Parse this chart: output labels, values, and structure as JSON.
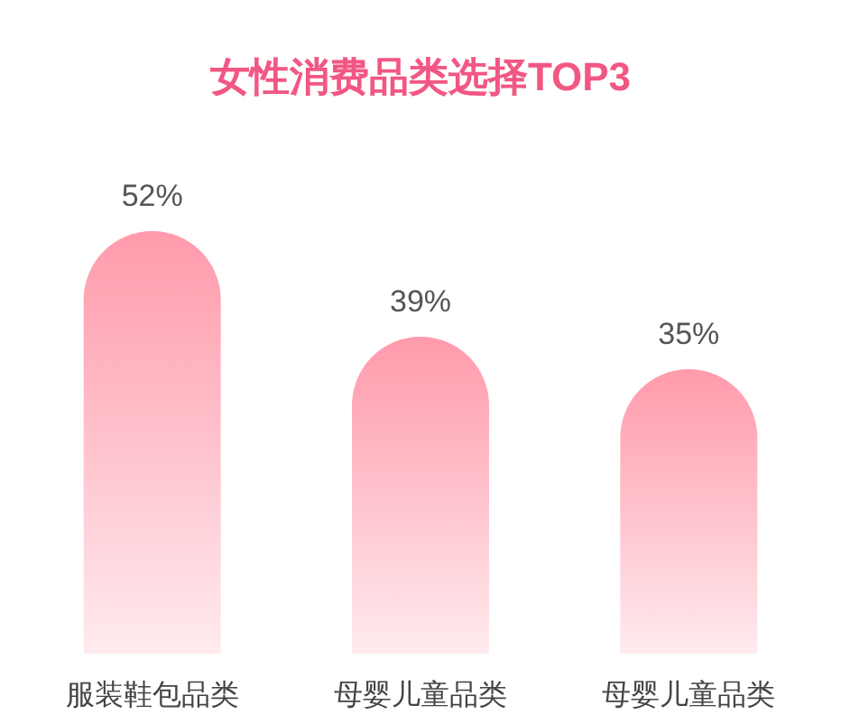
{
  "chart_data": {
    "type": "bar",
    "title": "女性消费品类选择TOP3",
    "categories": [
      "服装鞋包品类",
      "母婴儿童品类",
      "母婴儿童品类"
    ],
    "values": [
      52,
      39,
      35
    ],
    "value_labels": [
      "52%",
      "39%",
      "35%"
    ],
    "color": "#ff9aab"
  }
}
